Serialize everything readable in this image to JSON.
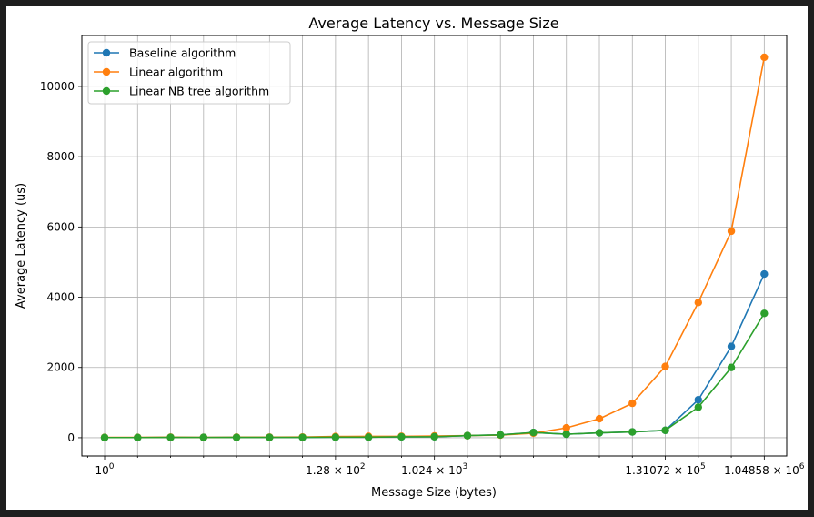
{
  "chart_data": {
    "type": "line",
    "title": "Average Latency vs. Message Size",
    "xlabel": "Message Size (bytes)",
    "ylabel": "Average Latency (us)",
    "x_scale": "log2",
    "grid": true,
    "legend_position": "top-left",
    "x": [
      1,
      2,
      4,
      8,
      16,
      32,
      64,
      128,
      256,
      512,
      1024,
      2048,
      4096,
      8192,
      16384,
      32768,
      65536,
      131072,
      262144,
      524288,
      1048576
    ],
    "x_tick_values": [
      1,
      128,
      1024,
      131072,
      1048576
    ],
    "x_tick_labels": [
      {
        "mantissa": "10",
        "exponent": "0"
      },
      {
        "mantissa": "1.28 × 10",
        "exponent": "2"
      },
      {
        "mantissa": "1.024 × 10",
        "exponent": "3"
      },
      {
        "mantissa": "1.31072 × 10",
        "exponent": "5"
      },
      {
        "mantissa": "1.04858 × 10",
        "exponent": "6"
      }
    ],
    "xlim": [
      0.62,
      1680000
    ],
    "ylim": [
      -520,
      11450
    ],
    "y_ticks": [
      0,
      2000,
      4000,
      6000,
      8000,
      10000
    ],
    "y_tick_labels": [
      "0",
      "2000",
      "4000",
      "6000",
      "8000",
      "10000"
    ],
    "series": [
      {
        "name": "Baseline algorithm",
        "color": "#1f77b4",
        "values": [
          5,
          5,
          10,
          8,
          10,
          10,
          10,
          15,
          15,
          25,
          30,
          60,
          80,
          150,
          100,
          140,
          165,
          210,
          1080,
          2600,
          4660
        ]
      },
      {
        "name": "Linear algorithm",
        "color": "#ff7f0e",
        "values": [
          10,
          10,
          15,
          10,
          15,
          15,
          20,
          35,
          40,
          40,
          50,
          60,
          75,
          130,
          280,
          540,
          980,
          2030,
          3850,
          5880,
          10830
        ]
      },
      {
        "name": "Linear NB tree algorithm",
        "color": "#2ca02c",
        "values": [
          5,
          5,
          10,
          8,
          10,
          10,
          10,
          15,
          15,
          25,
          30,
          60,
          80,
          150,
          100,
          140,
          165,
          210,
          870,
          2000,
          3540
        ]
      }
    ]
  }
}
